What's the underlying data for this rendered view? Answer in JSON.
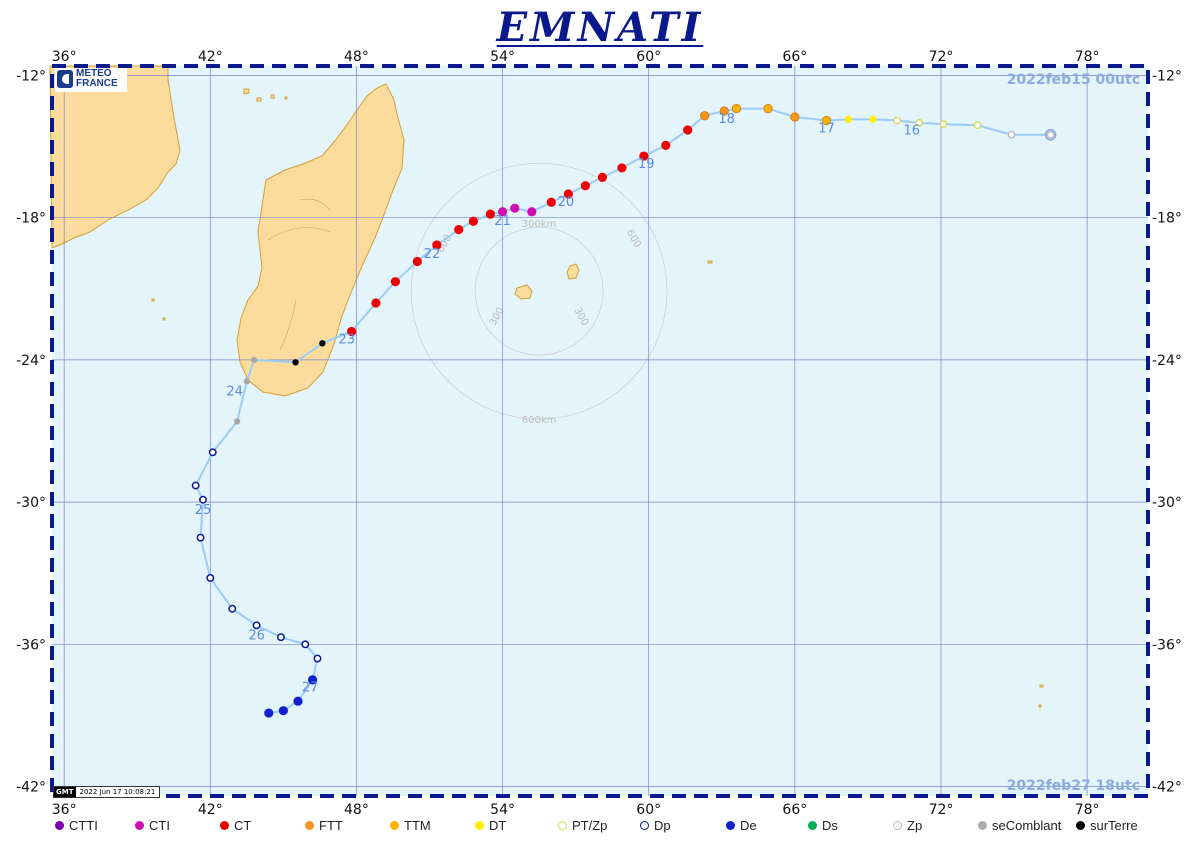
{
  "title": "EMNATI",
  "logo": {
    "line1": "METEO",
    "line2": "FRANCE"
  },
  "start_label": "2022feb15  00utc",
  "end_label": "2022feb27  18utc",
  "stamp": {
    "tag": "GMT",
    "when": "2022 Jun 17 10:08:21"
  },
  "map": {
    "lon_min": 35.5,
    "lon_max": 80.5,
    "lat_min": -42.4,
    "lat_max": -11.6,
    "lon_ticks": [
      36,
      42,
      48,
      54,
      60,
      66,
      72,
      78
    ],
    "lat_ticks": [
      -12,
      -18,
      -24,
      -30,
      -36,
      -42
    ],
    "lon_tick_labels": [
      "36°",
      "42°",
      "48°",
      "54°",
      "60°",
      "66°",
      "72°",
      "78°"
    ],
    "lat_tick_labels": [
      "-12°",
      "-18°",
      "-24°",
      "-30°",
      "-36°",
      "-42°"
    ],
    "colors": {
      "ocean": "#e4f4fb",
      "land": "#fbdc9d",
      "coast": "#d2a033",
      "grid": "#7b86c8",
      "track": "#99ccf7",
      "frame": "#0a1a8c",
      "daylabel": "#5a8be0"
    }
  },
  "range_rings": {
    "center": [
      55.5,
      -21.1
    ],
    "radius_km": [
      300,
      600
    ],
    "labels": [
      "300",
      "300",
      "600",
      "600",
      "300km",
      "600km"
    ]
  },
  "track": [
    {
      "lon": 76.5,
      "lat": -14.5,
      "cat": "Zp"
    },
    {
      "lon": 74.9,
      "lat": -14.5,
      "cat": "Zp"
    },
    {
      "lon": 73.5,
      "lat": -14.1,
      "cat": "PT/Zp"
    },
    {
      "lon": 72.1,
      "lat": -14.05,
      "cat": "PT/Zp"
    },
    {
      "lon": 71.1,
      "lat": -14.0,
      "cat": "PT/Zp"
    },
    {
      "lon": 70.2,
      "lat": -13.9,
      "cat": "PT/Zp"
    },
    {
      "lon": 69.2,
      "lat": -13.85,
      "cat": "DT"
    },
    {
      "lon": 68.2,
      "lat": -13.85,
      "cat": "DT"
    },
    {
      "lon": 67.3,
      "lat": -13.9,
      "cat": "TTM"
    },
    {
      "lon": 66.0,
      "lat": -13.75,
      "cat": "FTT"
    },
    {
      "lon": 64.9,
      "lat": -13.4,
      "cat": "TTM"
    },
    {
      "lon": 63.6,
      "lat": -13.4,
      "cat": "TTM"
    },
    {
      "lon": 63.1,
      "lat": -13.5,
      "cat": "FTT"
    },
    {
      "lon": 62.3,
      "lat": -13.7,
      "cat": "FTT"
    },
    {
      "lon": 61.6,
      "lat": -14.3,
      "cat": "CT"
    },
    {
      "lon": 60.7,
      "lat": -14.95,
      "cat": "CT"
    },
    {
      "lon": 59.8,
      "lat": -15.4,
      "cat": "CT"
    },
    {
      "lon": 58.9,
      "lat": -15.9,
      "cat": "CT"
    },
    {
      "lon": 58.1,
      "lat": -16.3,
      "cat": "CT"
    },
    {
      "lon": 57.4,
      "lat": -16.65,
      "cat": "CT"
    },
    {
      "lon": 56.7,
      "lat": -17.0,
      "cat": "CT"
    },
    {
      "lon": 56.0,
      "lat": -17.35,
      "cat": "CT"
    },
    {
      "lon": 55.2,
      "lat": -17.75,
      "cat": "CTI"
    },
    {
      "lon": 54.5,
      "lat": -17.6,
      "cat": "CTI"
    },
    {
      "lon": 54.0,
      "lat": -17.75,
      "cat": "CTI"
    },
    {
      "lon": 53.5,
      "lat": -17.85,
      "cat": "CT"
    },
    {
      "lon": 52.8,
      "lat": -18.15,
      "cat": "CT"
    },
    {
      "lon": 52.2,
      "lat": -18.5,
      "cat": "CT"
    },
    {
      "lon": 51.3,
      "lat": -19.15,
      "cat": "CT"
    },
    {
      "lon": 50.5,
      "lat": -19.85,
      "cat": "CT"
    },
    {
      "lon": 49.6,
      "lat": -20.7,
      "cat": "CT"
    },
    {
      "lon": 48.8,
      "lat": -21.6,
      "cat": "CT"
    },
    {
      "lon": 47.8,
      "lat": -22.8,
      "cat": "CT"
    },
    {
      "lon": 46.6,
      "lat": -23.3,
      "cat": "surTerre"
    },
    {
      "lon": 45.5,
      "lat": -24.1,
      "cat": "surTerre"
    },
    {
      "lon": 43.8,
      "lat": -24.0,
      "cat": "seComblant"
    },
    {
      "lon": 43.5,
      "lat": -24.9,
      "cat": "seComblant"
    },
    {
      "lon": 43.1,
      "lat": -26.6,
      "cat": "seComblant"
    },
    {
      "lon": 42.1,
      "lat": -27.9,
      "cat": "Dp"
    },
    {
      "lon": 41.4,
      "lat": -29.3,
      "cat": "Dp"
    },
    {
      "lon": 41.7,
      "lat": -29.9,
      "cat": "Dp"
    },
    {
      "lon": 41.6,
      "lat": -31.5,
      "cat": "Dp"
    },
    {
      "lon": 42.0,
      "lat": -33.2,
      "cat": "Dp"
    },
    {
      "lon": 42.9,
      "lat": -34.5,
      "cat": "Dp"
    },
    {
      "lon": 43.9,
      "lat": -35.2,
      "cat": "Dp"
    },
    {
      "lon": 44.9,
      "lat": -35.7,
      "cat": "Dp"
    },
    {
      "lon": 45.9,
      "lat": -36.0,
      "cat": "Dp"
    },
    {
      "lon": 46.4,
      "lat": -36.6,
      "cat": "Dp"
    },
    {
      "lon": 46.2,
      "lat": -37.5,
      "cat": "De"
    },
    {
      "lon": 45.6,
      "lat": -38.4,
      "cat": "De"
    },
    {
      "lon": 45.0,
      "lat": -38.8,
      "cat": "De"
    },
    {
      "lon": 44.4,
      "lat": -38.9,
      "cat": "De"
    }
  ],
  "day_labels": [
    {
      "text": "16",
      "lon": 70.8,
      "lat": -14.5
    },
    {
      "text": "17",
      "lon": 67.3,
      "lat": -14.4
    },
    {
      "text": "18",
      "lon": 63.2,
      "lat": -14.0
    },
    {
      "text": "19",
      "lon": 59.9,
      "lat": -15.9
    },
    {
      "text": "20",
      "lon": 56.6,
      "lat": -17.5
    },
    {
      "text": "21",
      "lon": 54.0,
      "lat": -18.3
    },
    {
      "text": "22",
      "lon": 51.1,
      "lat": -19.7
    },
    {
      "text": "23",
      "lon": 47.6,
      "lat": -23.3
    },
    {
      "text": "24",
      "lon": 43.0,
      "lat": -25.5
    },
    {
      "text": "25",
      "lon": 41.7,
      "lat": -30.5
    },
    {
      "text": "26",
      "lon": 43.9,
      "lat": -35.8
    },
    {
      "text": "27",
      "lon": 46.1,
      "lat": -38.0
    }
  ],
  "legend": [
    {
      "label": "CTTI",
      "color": "#7b00a8",
      "hollow": false
    },
    {
      "label": "CTI",
      "color": "#d00fb0",
      "hollow": false
    },
    {
      "label": "CT",
      "color": "#ee0000",
      "hollow": false
    },
    {
      "label": "FTT",
      "color": "#f7941d",
      "hollow": false
    },
    {
      "label": "TTM",
      "color": "#ffb300",
      "hollow": false
    },
    {
      "label": "DT",
      "color": "#ffee00",
      "hollow": false
    },
    {
      "label": "PT/Zp",
      "color": "#d9d95a",
      "hollow": true
    },
    {
      "label": "Dp",
      "color": "#0a1a8c",
      "hollow": true
    },
    {
      "label": "De",
      "color": "#1020cc",
      "hollow": false
    },
    {
      "label": "Ds",
      "color": "#00b050",
      "hollow": false
    },
    {
      "label": "Zp",
      "color": "#bbbbbb",
      "hollow": true
    },
    {
      "label": "seComblant",
      "color": "#aaaaaa",
      "hollow": false
    },
    {
      "label": "surTerre",
      "color": "#000000",
      "hollow": false
    }
  ]
}
